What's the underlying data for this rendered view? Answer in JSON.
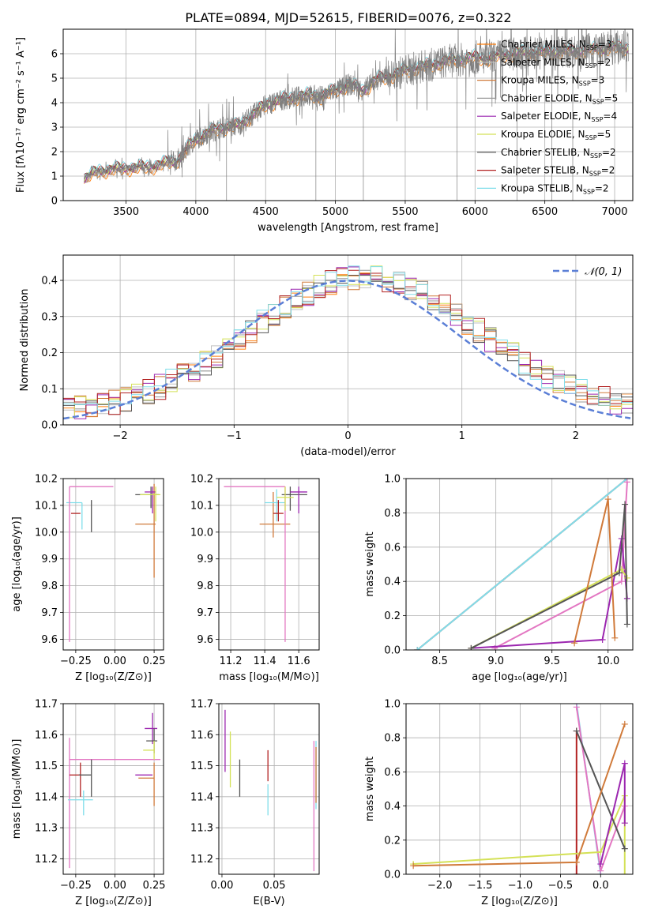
{
  "figure_title": "PLATE=0894, MJD=52615, FIBERID=0076, z=0.322",
  "series_colors": [
    "#ff7f0e",
    "#c0c0c0",
    "#d07a3a",
    "#9a9a9a",
    "#9c27b0",
    "#d4e157",
    "#555555",
    "#b22222",
    "#80deea"
  ],
  "legend_entries": [
    {
      "label": "Chabrier MILES, N",
      "sub": "SSP",
      "suffix": "=3",
      "color": "#ff7f0e"
    },
    {
      "label": "Salpeter MILES, N",
      "sub": "SSP",
      "suffix": "=2",
      "color": "#c0c0c0"
    },
    {
      "label": "Kroupa MILES, N",
      "sub": "SSP",
      "suffix": "=3",
      "color": "#d07a3a"
    },
    {
      "label": "Chabrier ELODIE, N",
      "sub": "SSP",
      "suffix": "=5",
      "color": "#9a9a9a"
    },
    {
      "label": "Salpeter ELODIE, N",
      "sub": "SSP",
      "suffix": "=4",
      "color": "#9c27b0"
    },
    {
      "label": "Kroupa ELODIE, N",
      "sub": "SSP",
      "suffix": "=5",
      "color": "#d4e157"
    },
    {
      "label": "Chabrier STELIB, N",
      "sub": "SSP",
      "suffix": "=2",
      "color": "#555555"
    },
    {
      "label": "Salpeter STELIB, N",
      "sub": "SSP",
      "suffix": "=2",
      "color": "#b22222"
    },
    {
      "label": "Kroupa STELIB, N",
      "sub": "SSP",
      "suffix": "=2",
      "color": "#80deea"
    }
  ],
  "chart_data": [
    {
      "type": "line",
      "id": "spectrum",
      "title": "PLATE=0894, MJD=52615, FIBERID=0076, z=0.322",
      "xlabel": "wavelength [Angstrom, rest frame]",
      "ylabel": "Flux [fλ10⁻¹⁷ erg cm⁻² s⁻¹ A⁻¹]",
      "xlim": [
        3050,
        7130
      ],
      "ylim": [
        0,
        7
      ],
      "xticks": [
        3500,
        4000,
        4500,
        5000,
        5500,
        6000,
        6500,
        7000
      ],
      "yticks": [
        0,
        1,
        2,
        3,
        4,
        5,
        6
      ],
      "continuum": {
        "x": [
          3200,
          3300,
          3450,
          3600,
          3700,
          3800,
          3850,
          3900,
          3950,
          4000,
          4100,
          4200,
          4300,
          4400,
          4500,
          4600,
          4700,
          4800,
          4900,
          5000,
          5100,
          5200,
          5300,
          5400,
          5500,
          5600,
          5700,
          5800,
          5900,
          6000,
          6100,
          6200,
          6300,
          6400,
          6500,
          6600,
          6700,
          6800,
          6900,
          7000,
          7100
        ],
        "y": [
          0.9,
          1.2,
          1.3,
          1.35,
          1.4,
          1.55,
          1.6,
          1.8,
          2.2,
          2.5,
          2.8,
          3.0,
          3.05,
          3.45,
          3.9,
          4.1,
          4.2,
          4.3,
          4.25,
          4.5,
          4.75,
          4.5,
          4.95,
          5.1,
          5.3,
          5.45,
          5.55,
          5.7,
          5.75,
          5.85,
          5.8,
          5.95,
          6.0,
          6.05,
          6.05,
          6.1,
          6.1,
          6.15,
          6.2,
          6.25,
          6.25
        ]
      },
      "observed_color": "#808080"
    },
    {
      "type": "bar",
      "id": "residual-histogram",
      "xlabel": "(data-model)/error",
      "ylabel": "Normed distribution",
      "xlim": [
        -2.5,
        2.5
      ],
      "ylim": [
        0,
        0.47
      ],
      "xticks": [
        -2,
        -1,
        0,
        1,
        2
      ],
      "yticks": [
        0.0,
        0.1,
        0.2,
        0.3,
        0.4
      ],
      "bin_width": 0.1,
      "gaussian_label": "𝒩(0, 1)",
      "gaussian_color": "#5b7fd6"
    },
    {
      "type": "scatter",
      "id": "age-vs-Z",
      "xlabel": "Z [log₁₀(Z/Z⊙)]",
      "ylabel": "age  [log₁₀(age/yr)]",
      "xlim": [
        -0.33,
        0.31
      ],
      "ylim": [
        9.56,
        10.2
      ],
      "xticks": [
        -0.25,
        0.0,
        0.25
      ],
      "xticklabels": [
        "−0.25",
        "0.00",
        "0.25"
      ],
      "yticks": [
        9.6,
        9.7,
        9.8,
        9.9,
        10.0,
        10.1,
        10.2
      ],
      "crosses": [
        {
          "x": 0.25,
          "y": 10.03,
          "xerr": [
            0.12,
            0.01
          ],
          "yerr": [
            0.2,
            0.15
          ],
          "color": "#d07a3a"
        },
        {
          "x": -0.21,
          "y": 10.11,
          "xerr": [
            0.1,
            0.0
          ],
          "yerr": [
            0.1,
            0.0
          ],
          "color": "#80deea"
        },
        {
          "x": -0.22,
          "y": 10.07,
          "xerr": [
            0.06,
            0.0
          ],
          "yerr": [
            0.0,
            0.0
          ],
          "color": "#b22222"
        },
        {
          "x": -0.15,
          "y": 10.07,
          "xerr": [
            0.0,
            0.0
          ],
          "yerr": [
            0.07,
            0.05
          ],
          "color": "#555555"
        },
        {
          "x": 0.23,
          "y": 10.14,
          "xerr": [
            0.1,
            0.05
          ],
          "yerr": [
            0.05,
            0.03
          ],
          "color": "#555555"
        },
        {
          "x": -0.29,
          "y": 10.17,
          "xerr": [
            0.0,
            0.28
          ],
          "yerr": [
            0.58,
            0.0
          ],
          "color": "#e377c2"
        },
        {
          "x": 0.24,
          "y": 10.15,
          "xerr": [
            0.05,
            0.02
          ],
          "yerr": [
            0.08,
            0.02
          ],
          "color": "#9c27b0"
        },
        {
          "x": 0.26,
          "y": 10.14,
          "xerr": [
            0.1,
            0.03
          ],
          "yerr": [
            0.1,
            0.03
          ],
          "color": "#d4e157"
        }
      ]
    },
    {
      "type": "scatter",
      "id": "age-vs-mass",
      "xlabel": "mass [log₁₀(M/M⊙)]",
      "ylabel": "",
      "xlim": [
        11.13,
        11.72
      ],
      "ylim": [
        9.56,
        10.2
      ],
      "xticks": [
        11.2,
        11.4,
        11.6
      ],
      "yticks": [
        9.6,
        9.7,
        9.8,
        9.9,
        10.0,
        10.1,
        10.2
      ],
      "crosses": [
        {
          "x": 11.45,
          "y": 10.03,
          "xerr": [
            0.08,
            0.1
          ],
          "yerr": [
            0.05,
            0.12
          ],
          "color": "#d07a3a"
        },
        {
          "x": 11.47,
          "y": 10.11,
          "xerr": [
            0.07,
            0.05
          ],
          "yerr": [
            0.07,
            0.05
          ],
          "color": "#80deea"
        },
        {
          "x": 11.48,
          "y": 10.07,
          "xerr": [
            0.03,
            0.03
          ],
          "yerr": [
            0.03,
            0.05
          ],
          "color": "#b22222"
        },
        {
          "x": 11.52,
          "y": 10.17,
          "xerr": [
            0.36,
            0.0
          ],
          "yerr": [
            0.58,
            0.0
          ],
          "color": "#e377c2"
        },
        {
          "x": 11.55,
          "y": 10.14,
          "xerr": [
            0.05,
            0.1
          ],
          "yerr": [
            0.06,
            0.03
          ],
          "color": "#555555"
        },
        {
          "x": 11.6,
          "y": 10.15,
          "xerr": [
            0.05,
            0.05
          ],
          "yerr": [
            0.08,
            0.02
          ],
          "color": "#9c27b0"
        },
        {
          "x": 11.52,
          "y": 10.13,
          "xerr": [
            0.05,
            0.05
          ],
          "yerr": [
            0.05,
            0.04
          ],
          "color": "#d4e157"
        }
      ]
    },
    {
      "type": "line",
      "id": "mass-weight-vs-age",
      "xlabel": "age  [log₁₀(age/yr)]",
      "ylabel": "mass weight",
      "xlim": [
        8.2,
        10.22
      ],
      "ylim": [
        0,
        1.0
      ],
      "xticks": [
        8.5,
        9.0,
        9.5,
        10.0
      ],
      "yticks": [
        0.0,
        0.2,
        0.4,
        0.6,
        0.8,
        1.0
      ],
      "series": [
        {
          "name": "",
          "color": "#b22222",
          "x": [
            8.3,
            10.17
          ],
          "y": [
            0.0,
            1.0
          ]
        },
        {
          "name": "",
          "color": "#80deea",
          "x": [
            8.3,
            10.17
          ],
          "y": [
            0.0,
            1.0
          ]
        },
        {
          "name": "",
          "color": "#e377c2",
          "x": [
            8.99,
            10.12,
            10.17
          ],
          "y": [
            0.01,
            0.4,
            0.98
          ]
        },
        {
          "name": "",
          "color": "#9c27b0",
          "x": [
            8.78,
            9.95,
            10.12,
            10.17
          ],
          "y": [
            0.01,
            0.06,
            0.65,
            0.3
          ]
        },
        {
          "name": "",
          "color": "#d4e157",
          "x": [
            8.78,
            10.12,
            10.17
          ],
          "y": [
            0.01,
            0.47,
            0.42
          ]
        },
        {
          "name": "",
          "color": "#555555",
          "x": [
            8.78,
            10.1,
            10.15,
            10.17
          ],
          "y": [
            0.01,
            0.45,
            0.85,
            0.15
          ]
        },
        {
          "name": "",
          "color": "#d07a3a",
          "x": [
            9.7,
            10.0,
            10.06
          ],
          "y": [
            0.04,
            0.88,
            0.07
          ]
        }
      ]
    },
    {
      "type": "scatter",
      "id": "mass-vs-Z",
      "xlabel": "Z [log₁₀(Z/Z⊙)]",
      "ylabel": "mass [log₁₀(M/M⊙)]",
      "xlim": [
        -0.33,
        0.31
      ],
      "ylim": [
        11.15,
        11.7
      ],
      "xticks": [
        -0.25,
        0.0,
        0.25
      ],
      "xticklabels": [
        "−0.25",
        "0.00",
        "0.25"
      ],
      "yticks": [
        11.2,
        11.3,
        11.4,
        11.5,
        11.6,
        11.7
      ],
      "crosses": [
        {
          "x": -0.29,
          "y": 11.52,
          "xerr": [
            0.0,
            0.58
          ],
          "yerr": [
            0.35,
            0.07
          ],
          "color": "#e377c2"
        },
        {
          "x": -0.22,
          "y": 11.47,
          "xerr": [
            0.07,
            0.0
          ],
          "yerr": [
            0.07,
            0.04
          ],
          "color": "#b22222"
        },
        {
          "x": -0.15,
          "y": 11.47,
          "xerr": [
            0.08,
            0.0
          ],
          "yerr": [
            0.07,
            0.05
          ],
          "color": "#555555"
        },
        {
          "x": -0.2,
          "y": 11.39,
          "xerr": [
            0.1,
            0.06
          ],
          "yerr": [
            0.05,
            0.03
          ],
          "color": "#80deea"
        },
        {
          "x": 0.25,
          "y": 11.46,
          "xerr": [
            0.1,
            0.0
          ],
          "yerr": [
            0.09,
            0.05
          ],
          "color": "#d07a3a"
        },
        {
          "x": 0.24,
          "y": 11.47,
          "xerr": [
            0.11,
            0.0
          ],
          "yerr": [
            0.0,
            0.0
          ],
          "color": "#9c27b0"
        },
        {
          "x": 0.24,
          "y": 11.62,
          "xerr": [
            0.05,
            0.03
          ],
          "yerr": [
            0.05,
            0.05
          ],
          "color": "#9c27b0"
        },
        {
          "x": 0.25,
          "y": 11.58,
          "xerr": [
            0.05,
            0.02
          ],
          "yerr": [
            0.04,
            0.04
          ],
          "color": "#555555"
        },
        {
          "x": 0.25,
          "y": 11.55,
          "xerr": [
            0.07,
            0.0
          ],
          "yerr": [
            0.03,
            0.03
          ],
          "color": "#d4e157"
        }
      ]
    },
    {
      "type": "scatter",
      "id": "mass-vs-ebv",
      "xlabel": "E(B-V)",
      "ylabel": "",
      "xlim": [
        -0.003,
        0.093
      ],
      "ylim": [
        11.15,
        11.7
      ],
      "xticks": [
        0.0,
        0.05
      ],
      "xticklabels": [
        "0.00",
        "0.05"
      ],
      "yticks": [
        11.2,
        11.3,
        11.4,
        11.5,
        11.6,
        11.7
      ],
      "crosses": [
        {
          "x": 0.003,
          "y": 11.58,
          "xerr": [
            0,
            0
          ],
          "yerr": [
            0.1,
            0.1
          ],
          "color": "#9c27b0"
        },
        {
          "x": 0.008,
          "y": 11.52,
          "xerr": [
            0,
            0
          ],
          "yerr": [
            0.09,
            0.09
          ],
          "color": "#d4e157"
        },
        {
          "x": 0.017,
          "y": 11.46,
          "xerr": [
            0,
            0
          ],
          "yerr": [
            0.06,
            0.06
          ],
          "color": "#555555"
        },
        {
          "x": 0.044,
          "y": 11.5,
          "xerr": [
            0,
            0
          ],
          "yerr": [
            0.05,
            0.05
          ],
          "color": "#b22222"
        },
        {
          "x": 0.044,
          "y": 11.39,
          "xerr": [
            0,
            0
          ],
          "yerr": [
            0.05,
            0.05
          ],
          "color": "#80deea"
        },
        {
          "x": 0.088,
          "y": 11.37,
          "xerr": [
            0,
            0
          ],
          "yerr": [
            0.21,
            0.21
          ],
          "color": "#e377c2"
        },
        {
          "x": 0.09,
          "y": 11.47,
          "xerr": [
            0,
            0
          ],
          "yerr": [
            0.11,
            0.11
          ],
          "color": "#80deea"
        },
        {
          "x": 0.09,
          "y": 11.47,
          "xerr": [
            0,
            0
          ],
          "yerr": [
            0.09,
            0.09
          ],
          "color": "#d07a3a"
        }
      ]
    },
    {
      "type": "line",
      "id": "mass-weight-vs-Z",
      "xlabel": "Z [log₁₀(Z/Z⊙)]",
      "ylabel": "mass weight",
      "xlim": [
        -2.42,
        0.4
      ],
      "ylim": [
        0,
        1.0
      ],
      "xticks": [
        -2.0,
        -1.5,
        -1.0,
        -0.5,
        0.0
      ],
      "xticklabels": [
        "−2.0",
        "−1.5",
        "−1.0",
        "−0.5",
        "0.0"
      ],
      "yticks": [
        0.0,
        0.2,
        0.4,
        0.6,
        0.8,
        1.0
      ],
      "series": [
        {
          "name": "",
          "color": "#b22222",
          "x": [
            -0.3,
            -0.3
          ],
          "y": [
            0.0,
            0.84
          ]
        },
        {
          "name": "",
          "color": "#80deea",
          "x": [
            -0.3,
            0.0
          ],
          "y": [
            1.0,
            0.0
          ]
        },
        {
          "name": "",
          "color": "#e377c2",
          "x": [
            -0.3,
            0.0,
            0.3
          ],
          "y": [
            0.98,
            0.02,
            0.4
          ]
        },
        {
          "name": "",
          "color": "#d4e157",
          "x": [
            -2.33,
            0.0,
            0.3,
            0.3
          ],
          "y": [
            0.06,
            0.13,
            0.46,
            0.0
          ]
        },
        {
          "name": "",
          "color": "#555555",
          "x": [
            -0.3,
            0.3
          ],
          "y": [
            0.84,
            0.15
          ]
        },
        {
          "name": "",
          "color": "#9c27b0",
          "x": [
            0.0,
            0.3,
            0.3
          ],
          "y": [
            0.06,
            0.65,
            0.3
          ]
        },
        {
          "name": "",
          "color": "#d07a3a",
          "x": [
            -2.33,
            -0.3,
            0.3
          ],
          "y": [
            0.05,
            0.07,
            0.88
          ]
        }
      ]
    }
  ]
}
